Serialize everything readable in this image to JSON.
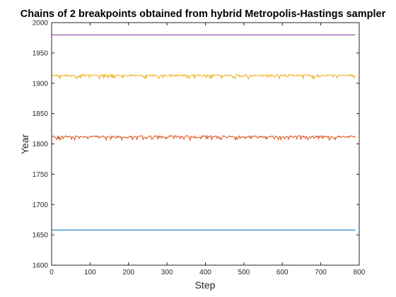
{
  "chart_data": {
    "type": "line",
    "title": "Chains of 2 breakpoints obtained from hybrid Metropolis-Hastings sampler",
    "xlabel": "Step",
    "ylabel": "Year",
    "xlim": [
      0,
      800
    ],
    "ylim": [
      1600,
      2000
    ],
    "xticks": [
      0,
      100,
      200,
      300,
      400,
      500,
      600,
      700,
      800
    ],
    "yticks": [
      1600,
      1650,
      1700,
      1750,
      1800,
      1850,
      1900,
      1950,
      2000
    ],
    "grid": false,
    "legend": "none",
    "series": [
      {
        "color": "#0072BD",
        "x": [
          0,
          790
        ],
        "y": [
          1658,
          1658
        ]
      },
      {
        "color": "#D95319",
        "x": [
          0,
          100,
          200,
          300,
          400,
          500,
          600,
          700,
          790
        ],
        "y": [
          1812,
          1810,
          1813,
          1811,
          1812,
          1810,
          1813,
          1811,
          1812
        ]
      },
      {
        "color": "#EDB120",
        "x": [
          0,
          100,
          200,
          300,
          323,
          400,
          500,
          595,
          700,
          790
        ],
        "y": [
          1913,
          1912,
          1914,
          1913,
          1899,
          1913,
          1912,
          1905,
          1913,
          1913
        ]
      },
      {
        "color": "#7E2F8E",
        "x": [
          0,
          790
        ],
        "y": [
          1980,
          1980
        ]
      }
    ]
  }
}
